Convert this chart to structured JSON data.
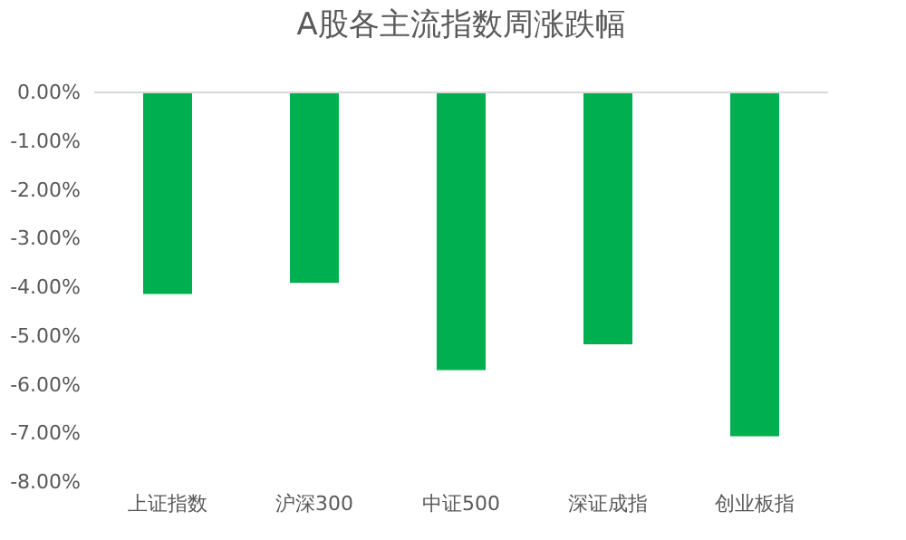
{
  "chart_data": {
    "type": "bar",
    "title": "A股各主流指数周涨跌幅",
    "categories": [
      "上证指数",
      "沪深300",
      "中证500",
      "深证成指",
      "创业板指"
    ],
    "series": [
      {
        "color": "#00b050",
        "values": [
          -4.14,
          -3.91,
          -5.7,
          -5.17,
          -7.06
        ]
      }
    ],
    "ylim": [
      -8,
      0
    ],
    "yticks": [
      {
        "value": 0,
        "label": "0.00%"
      },
      {
        "value": -1,
        "label": "-1.00%"
      },
      {
        "value": -2,
        "label": "-2.00%"
      },
      {
        "value": -3,
        "label": "-3.00%"
      },
      {
        "value": -4,
        "label": "-4.00%"
      },
      {
        "value": -5,
        "label": "-5.00%"
      },
      {
        "value": -6,
        "label": "-6.00%"
      },
      {
        "value": -7,
        "label": "-7.00%"
      },
      {
        "value": -8,
        "label": "-8.00%"
      }
    ],
    "grid": false
  }
}
